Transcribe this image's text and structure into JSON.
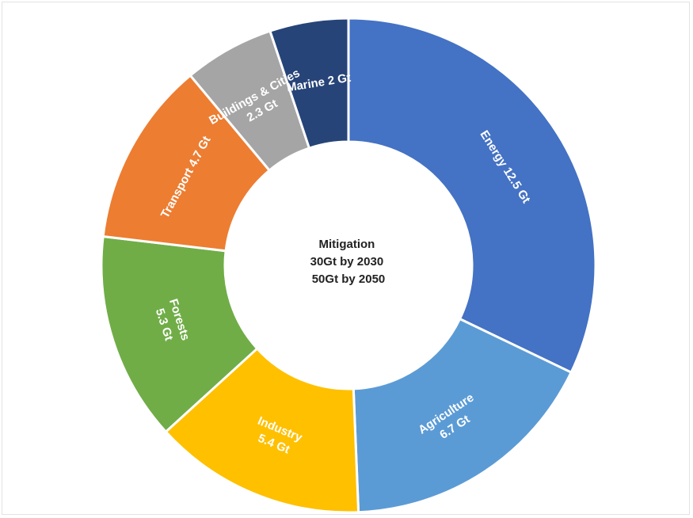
{
  "chart_data": {
    "type": "pie",
    "variant": "donut",
    "categories": [
      "Energy",
      "Agriculture",
      "Industry",
      "Forests",
      "Transport",
      "Buildings & Cities",
      "Marine"
    ],
    "values": [
      12.5,
      6.7,
      5.4,
      5.3,
      4.7,
      2.3,
      2.0
    ],
    "unit": "Gt",
    "colors": [
      "#4472c4",
      "#5b9bd5",
      "#ffc000",
      "#70ad47",
      "#ed7d31",
      "#a5a5a5",
      "#264478"
    ],
    "labels": [
      [
        "Energy 12.5 Gt"
      ],
      [
        "Agriculture",
        "6.7 Gt"
      ],
      [
        "Industry",
        "5.4 Gt"
      ],
      [
        "Forests",
        "5.3 Gt"
      ],
      [
        "Transport 4.7 Gt"
      ],
      [
        "Buildings & Cities",
        "2.3 Gt"
      ],
      [
        "Marine 2 Gt"
      ]
    ],
    "center_text": [
      "Mitigation",
      "30Gt by 2030",
      "50Gt by 2050"
    ],
    "title": "",
    "legend": "none"
  }
}
